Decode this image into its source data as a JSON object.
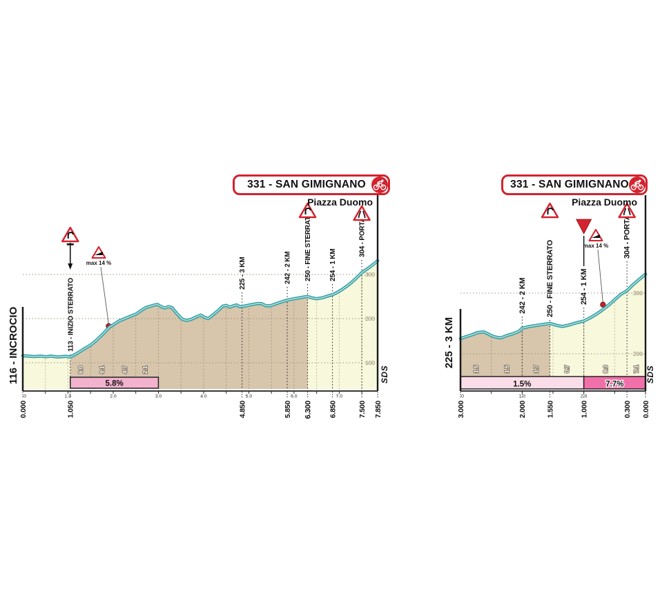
{
  "page": {
    "background": "#ffffff"
  },
  "meta": {
    "logo": "SDS"
  },
  "colors": {
    "red": "#d2232e",
    "teal": "#2f9fa3",
    "teal_core": "#b7dfde",
    "gravel": "#d7c5ac",
    "asphalt": "#f8f8dc",
    "pink_mid": "#f3b2ce",
    "pink_light": "#fadde8",
    "pink_dark": "#f170aa",
    "axis": "#1a1a1a",
    "grid": "#8f8672"
  },
  "chart_data": [
    {
      "id": "finale-7.85km",
      "type": "area",
      "title": "331 - SAN GIMIGNANO",
      "subtitle": "Piazza Duomo",
      "start_label": "116 - INCROCIO",
      "x_axis": {
        "unit": "km",
        "range": [
          0,
          7.85
        ],
        "direction": "distance-covered",
        "minor_tick_labels": [
          "0",
          "1.0",
          "2.0",
          "3.0",
          "4.0",
          "5.0",
          "6.0",
          "7.0"
        ],
        "minor_tick_values": [
          0,
          1,
          2,
          3,
          4,
          5,
          6,
          7
        ],
        "major_labels": [
          {
            "text": "0.000",
            "km": 0
          },
          {
            "text": "1.050",
            "km": 1.05
          },
          {
            "text": "4.850",
            "km": 4.85
          },
          {
            "text": "5.850",
            "km": 5.85
          },
          {
            "text": "6.300",
            "km": 6.3,
            "emphasis": true
          },
          {
            "text": "6.850",
            "km": 6.85
          },
          {
            "text": "7.500",
            "km": 7.5
          },
          {
            "text": "7.850",
            "km": 7.85
          }
        ]
      },
      "y_axis": {
        "unit": "m",
        "gridlines": [
          100,
          200,
          300
        ]
      },
      "surfaces": [
        {
          "from": 0,
          "to": 1.05,
          "type": "asphalt"
        },
        {
          "from": 1.05,
          "to": 6.3,
          "type": "gravel"
        },
        {
          "from": 6.3,
          "to": 7.85,
          "type": "asphalt"
        }
      ],
      "waypoints": [
        {
          "km": 1.05,
          "label": "113 - INIZIO STERRATO",
          "sign": "gravel-road",
          "arrow": true
        },
        {
          "km": 4.85,
          "label": "225 - 3 KM"
        },
        {
          "km": 5.85,
          "label": "242 - 2 KM"
        },
        {
          "km": 6.3,
          "label": "250 - FINE STERRATO",
          "bold": true,
          "sign": "curve"
        },
        {
          "km": 6.85,
          "label": "254 - 1 KM"
        },
        {
          "km": 7.5,
          "label": "304 - PORTA",
          "sign": "road-narrows"
        }
      ],
      "max_grade": {
        "label": "max 14 %",
        "km": 1.9,
        "elev": 183
      },
      "gradient_cells": [
        {
          "from": 1.05,
          "to": 1.5,
          "value": "6.0"
        },
        {
          "from": 1.5,
          "to": 2.0,
          "value": "9.1"
        },
        {
          "from": 2.0,
          "to": 2.5,
          "value": "4.7"
        },
        {
          "from": 2.5,
          "to": 2.9,
          "value": "2.1"
        },
        {
          "from": 2.9,
          "to": 3.0,
          "value": ""
        }
      ],
      "avg_gradient_boxes": [
        {
          "from": 1.05,
          "to": 3.0,
          "label": "5.8%",
          "color": "pink_mid"
        }
      ],
      "profile": [
        [
          0,
          116
        ],
        [
          0.12,
          115
        ],
        [
          0.25,
          114
        ],
        [
          0.4,
          115
        ],
        [
          0.5,
          113.5
        ],
        [
          0.62,
          115
        ],
        [
          0.78,
          113
        ],
        [
          0.95,
          114.5
        ],
        [
          1.05,
          113
        ],
        [
          1.18,
          120
        ],
        [
          1.32,
          129
        ],
        [
          1.5,
          140
        ],
        [
          1.62,
          150
        ],
        [
          1.78,
          166
        ],
        [
          1.92,
          181
        ],
        [
          2,
          186
        ],
        [
          2.12,
          194
        ],
        [
          2.28,
          201
        ],
        [
          2.42,
          207
        ],
        [
          2.5,
          210
        ],
        [
          2.6,
          217
        ],
        [
          2.72,
          225
        ],
        [
          2.82,
          228
        ],
        [
          2.92,
          231
        ],
        [
          2.98,
          232
        ],
        [
          3.06,
          227
        ],
        [
          3.14,
          224
        ],
        [
          3.22,
          227
        ],
        [
          3.3,
          225
        ],
        [
          3.42,
          210
        ],
        [
          3.52,
          199
        ],
        [
          3.62,
          196
        ],
        [
          3.72,
          198
        ],
        [
          3.84,
          204
        ],
        [
          3.94,
          208
        ],
        [
          4.02,
          203
        ],
        [
          4.1,
          200
        ],
        [
          4.2,
          208
        ],
        [
          4.32,
          218
        ],
        [
          4.42,
          228
        ],
        [
          4.5,
          230
        ],
        [
          4.58,
          226
        ],
        [
          4.66,
          229
        ],
        [
          4.73,
          231
        ],
        [
          4.8,
          227
        ],
        [
          4.88,
          228
        ],
        [
          4.98,
          230
        ],
        [
          5.08,
          232
        ],
        [
          5.18,
          234
        ],
        [
          5.28,
          234
        ],
        [
          5.38,
          229
        ],
        [
          5.48,
          229
        ],
        [
          5.58,
          233
        ],
        [
          5.7,
          237
        ],
        [
          5.85,
          242
        ],
        [
          6,
          245
        ],
        [
          6.12,
          247
        ],
        [
          6.22,
          249
        ],
        [
          6.3,
          250
        ],
        [
          6.4,
          247
        ],
        [
          6.5,
          245
        ],
        [
          6.62,
          247
        ],
        [
          6.74,
          251
        ],
        [
          6.85,
          254
        ],
        [
          6.95,
          259
        ],
        [
          7.05,
          265
        ],
        [
          7.15,
          272
        ],
        [
          7.25,
          280
        ],
        [
          7.35,
          289
        ],
        [
          7.45,
          299
        ],
        [
          7.5,
          304
        ],
        [
          7.58,
          310
        ],
        [
          7.68,
          317
        ],
        [
          7.78,
          325
        ],
        [
          7.85,
          331
        ]
      ]
    },
    {
      "id": "last-3km",
      "type": "area",
      "title": "331 - SAN GIMIGNANO",
      "subtitle": "Piazza Duomo",
      "start_label": "225 - 3 KM",
      "x_axis": {
        "unit": "km",
        "range": [
          0,
          3
        ],
        "direction": "distance-to-go",
        "minor_tick_labels": [
          "0",
          "1.0",
          "2.0"
        ],
        "minor_tick_values": [
          0,
          1,
          2
        ],
        "major_labels": [
          {
            "text": "3.000",
            "km": 3
          },
          {
            "text": "2.000",
            "km": 2
          },
          {
            "text": "1.550",
            "km": 1.55
          },
          {
            "text": "1.000",
            "km": 1
          },
          {
            "text": "0.300",
            "km": 0.3
          },
          {
            "text": "0.000",
            "km": 0
          }
        ]
      },
      "y_axis": {
        "unit": "m",
        "gridlines": [
          200,
          300
        ]
      },
      "surfaces": [
        {
          "from": 1.55,
          "to": 3,
          "type": "gravel"
        },
        {
          "from": 0,
          "to": 1.55,
          "type": "asphalt"
        }
      ],
      "waypoints": [
        {
          "km": 2.0,
          "label": "242 - 2 KM"
        },
        {
          "km": 1.55,
          "label": "250 - FINE STERRATO",
          "bold": true,
          "sign": "curve"
        },
        {
          "km": 1.0,
          "label": "254 - 1 KM",
          "marker": "red-triangle"
        },
        {
          "km": 0.3,
          "label": "304 - PORTA",
          "sign": "road-narrows"
        }
      ],
      "max_grade": {
        "label": "max 14 %",
        "km": 0.69,
        "elev": 281
      },
      "gradient_cells": [
        {
          "from": 3,
          "to": 2.5,
          "value": "1.5"
        },
        {
          "from": 2.5,
          "to": 2,
          "value": "1.5"
        },
        {
          "from": 2,
          "to": 1.55,
          "value": "1.7"
        },
        {
          "from": 1.55,
          "to": 1,
          "value": "0.7"
        },
        {
          "from": 1,
          "to": 0.3,
          "value": "8.3"
        },
        {
          "from": 0.3,
          "to": 0,
          "value": "7.1"
        }
      ],
      "avg_gradient_boxes": [
        {
          "from": 3,
          "to": 1,
          "label": "1.5%",
          "color": "pink_light"
        },
        {
          "from": 1,
          "to": 0,
          "label": "7.7%",
          "color": "pink_dark",
          "halo": true
        }
      ],
      "profile": [
        [
          3,
          225
        ],
        [
          2.92,
          228
        ],
        [
          2.82,
          231
        ],
        [
          2.72,
          235
        ],
        [
          2.62,
          236
        ],
        [
          2.52,
          231
        ],
        [
          2.45,
          228
        ],
        [
          2.35,
          226
        ],
        [
          2.25,
          230
        ],
        [
          2.15,
          233
        ],
        [
          2.05,
          237
        ],
        [
          2,
          242
        ],
        [
          1.88,
          245
        ],
        [
          1.75,
          247
        ],
        [
          1.62,
          249
        ],
        [
          1.55,
          250
        ],
        [
          1.45,
          247
        ],
        [
          1.35,
          245
        ],
        [
          1.25,
          247
        ],
        [
          1.12,
          251
        ],
        [
          1,
          254
        ],
        [
          0.9,
          259
        ],
        [
          0.8,
          265
        ],
        [
          0.7,
          272
        ],
        [
          0.6,
          280
        ],
        [
          0.5,
          289
        ],
        [
          0.4,
          298
        ],
        [
          0.3,
          304
        ],
        [
          0.22,
          312
        ],
        [
          0.12,
          321
        ],
        [
          0,
          331
        ]
      ]
    }
  ]
}
